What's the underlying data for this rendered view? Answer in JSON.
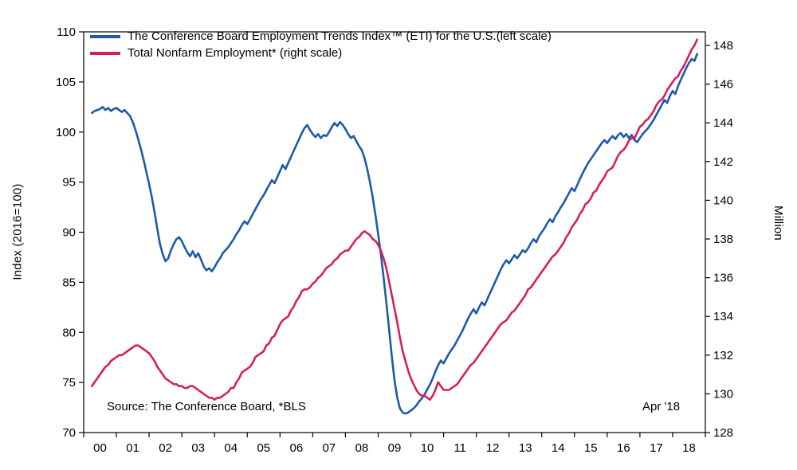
{
  "chart_data": {
    "type": "line",
    "title": "",
    "legend": [
      {
        "label": "The Conference Board Employment Trends Index™ (ETI) for the U.S.(left scale)",
        "color": "#1e5aa8"
      },
      {
        "label": "Total Nonfarm Employment* (right scale)",
        "color": "#d41f5f"
      }
    ],
    "left_axis": {
      "label": "Index (2016=100)",
      "min": 70,
      "max": 110,
      "ticks": [
        70,
        75,
        80,
        85,
        90,
        95,
        100,
        105,
        110
      ]
    },
    "right_axis": {
      "label": "Million",
      "min": 128,
      "max": 148.7,
      "ticks": [
        128,
        130,
        132,
        134,
        136,
        138,
        140,
        142,
        144,
        146,
        148
      ]
    },
    "x_axis": {
      "min": 1999.5,
      "max": 2018.5,
      "ticks": [
        2000,
        2001,
        2002,
        2003,
        2004,
        2005,
        2006,
        2007,
        2008,
        2009,
        2010,
        2011,
        2012,
        2013,
        2014,
        2015,
        2016,
        2017,
        2018
      ],
      "tick_labels": [
        "00",
        "01",
        "02",
        "03",
        "04",
        "05",
        "06",
        "07",
        "08",
        "09",
        "10",
        "11",
        "12",
        "13",
        "14",
        "15",
        "16",
        "17",
        "18"
      ]
    },
    "x_start": 1999.75,
    "x_step": 0.0833333,
    "source_note": "Source: The Conference Board, *BLS",
    "annotation": "Apr '18",
    "series": [
      {
        "name": "eti",
        "axis": "left",
        "color": "#1e5aa8",
        "values": [
          101.9,
          102.1,
          102.2,
          102.3,
          102.5,
          102.2,
          102.4,
          102.1,
          102.3,
          102.4,
          102.2,
          102.0,
          102.2,
          101.9,
          101.6,
          101.0,
          100.2,
          99.3,
          98.3,
          97.2,
          96.0,
          94.8,
          93.5,
          92.0,
          90.3,
          88.8,
          87.8,
          87.1,
          87.4,
          88.2,
          88.8,
          89.3,
          89.5,
          89.1,
          88.5,
          88.0,
          87.6,
          88.1,
          87.5,
          87.9,
          87.3,
          86.6,
          86.2,
          86.4,
          86.1,
          86.5,
          87.0,
          87.4,
          87.9,
          88.2,
          88.5,
          88.9,
          89.3,
          89.8,
          90.2,
          90.7,
          91.1,
          90.8,
          91.3,
          91.8,
          92.3,
          92.8,
          93.3,
          93.7,
          94.2,
          94.7,
          95.2,
          94.9,
          95.5,
          96.1,
          96.7,
          96.3,
          96.9,
          97.5,
          98.1,
          98.7,
          99.3,
          99.9,
          100.4,
          100.7,
          100.2,
          99.8,
          99.5,
          99.8,
          99.4,
          99.7,
          99.6,
          100.0,
          100.5,
          100.9,
          100.6,
          101.0,
          100.7,
          100.3,
          99.8,
          99.4,
          99.6,
          99.1,
          98.6,
          98.2,
          97.4,
          96.3,
          95.0,
          93.5,
          91.7,
          89.8,
          87.8,
          85.5,
          83.0,
          80.3,
          77.6,
          75.2,
          73.5,
          72.4,
          72.0,
          71.9,
          72.0,
          72.2,
          72.4,
          72.7,
          73.1,
          73.4,
          73.8,
          74.3,
          74.8,
          75.4,
          76.1,
          76.7,
          77.2,
          76.9,
          77.4,
          77.9,
          78.3,
          78.7,
          79.2,
          79.7,
          80.2,
          80.8,
          81.4,
          81.9,
          82.3,
          81.9,
          82.5,
          83.0,
          82.7,
          83.3,
          83.9,
          84.5,
          85.1,
          85.7,
          86.3,
          86.8,
          87.2,
          86.9,
          87.3,
          87.7,
          87.4,
          87.8,
          88.2,
          88.0,
          88.4,
          88.9,
          89.3,
          89.0,
          89.6,
          90.0,
          90.4,
          90.9,
          91.3,
          91.0,
          91.6,
          92.0,
          92.5,
          92.9,
          93.4,
          93.9,
          94.4,
          94.1,
          94.7,
          95.3,
          95.9,
          96.4,
          96.9,
          97.3,
          97.7,
          98.1,
          98.5,
          98.9,
          99.2,
          98.9,
          99.3,
          99.6,
          99.3,
          99.7,
          99.9,
          99.5,
          99.8,
          99.4,
          99.7,
          99.2,
          99.0,
          99.4,
          99.8,
          100.1,
          100.4,
          100.8,
          101.2,
          101.7,
          102.2,
          102.7,
          103.2,
          102.9,
          103.6,
          104.1,
          103.8,
          104.6,
          105.2,
          105.8,
          106.4,
          106.9,
          107.3,
          107.1,
          107.8
        ]
      },
      {
        "name": "nonfarm",
        "axis": "right",
        "color": "#d41f5f",
        "values": [
          130.4,
          130.6,
          130.8,
          131.0,
          131.2,
          131.4,
          131.5,
          131.7,
          131.8,
          131.9,
          132.0,
          132.0,
          132.1,
          132.2,
          132.3,
          132.4,
          132.5,
          132.5,
          132.4,
          132.3,
          132.2,
          132.1,
          131.9,
          131.7,
          131.4,
          131.2,
          131.0,
          130.8,
          130.7,
          130.6,
          130.5,
          130.5,
          130.4,
          130.4,
          130.3,
          130.3,
          130.4,
          130.4,
          130.3,
          130.2,
          130.1,
          130.0,
          129.9,
          129.8,
          129.8,
          129.7,
          129.8,
          129.8,
          129.9,
          130.0,
          130.1,
          130.3,
          130.3,
          130.6,
          130.8,
          131.1,
          131.2,
          131.3,
          131.4,
          131.6,
          131.9,
          132.0,
          132.1,
          132.2,
          132.5,
          132.6,
          132.9,
          133.0,
          133.3,
          133.6,
          133.8,
          133.9,
          134.0,
          134.3,
          134.5,
          134.8,
          135.0,
          135.3,
          135.4,
          135.4,
          135.5,
          135.7,
          135.8,
          136.0,
          136.1,
          136.3,
          136.5,
          136.6,
          136.7,
          136.9,
          137.0,
          137.2,
          137.3,
          137.4,
          137.4,
          137.6,
          137.8,
          138.0,
          138.1,
          138.3,
          138.4,
          138.3,
          138.2,
          138.0,
          137.9,
          137.7,
          137.4,
          137.0,
          136.5,
          135.8,
          135.1,
          134.4,
          133.7,
          132.9,
          132.2,
          131.7,
          131.2,
          130.8,
          130.5,
          130.2,
          130.0,
          129.9,
          129.9,
          129.8,
          129.7,
          129.9,
          130.2,
          130.6,
          130.4,
          130.2,
          130.2,
          130.2,
          130.3,
          130.4,
          130.5,
          130.7,
          130.9,
          131.1,
          131.3,
          131.5,
          131.6,
          131.8,
          132.0,
          132.2,
          132.4,
          132.6,
          132.8,
          133.0,
          133.2,
          133.4,
          133.6,
          133.7,
          133.8,
          134.0,
          134.2,
          134.3,
          134.5,
          134.7,
          134.9,
          135.1,
          135.4,
          135.5,
          135.7,
          135.9,
          136.1,
          136.3,
          136.5,
          136.7,
          136.9,
          137.1,
          137.2,
          137.4,
          137.6,
          137.8,
          138.1,
          138.3,
          138.6,
          138.8,
          139.0,
          139.3,
          139.5,
          139.8,
          139.9,
          140.1,
          140.4,
          140.5,
          140.8,
          141.0,
          141.2,
          141.5,
          141.6,
          141.7,
          142.0,
          142.3,
          142.5,
          142.6,
          142.8,
          143.1,
          143.2,
          143.2,
          143.5,
          143.8,
          143.9,
          144.1,
          144.2,
          144.4,
          144.6,
          144.9,
          145.1,
          145.2,
          145.4,
          145.7,
          145.9,
          146.1,
          146.3,
          146.4,
          146.7,
          146.9,
          147.2,
          147.5,
          147.8,
          148.0,
          148.3
        ]
      }
    ]
  }
}
